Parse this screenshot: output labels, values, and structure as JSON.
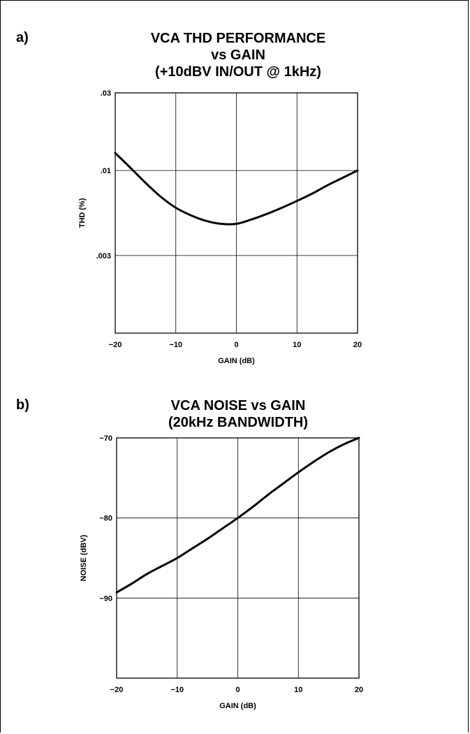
{
  "panels": {
    "a": {
      "letter": "a)",
      "title_lines": [
        "VCA THD PERFORMANCE",
        "vs GAIN",
        "(+10dBV IN/OUT @ 1kHz)"
      ]
    },
    "b": {
      "letter": "b)",
      "title_lines": [
        "VCA NOISE vs GAIN",
        "(20kHz BANDWIDTH)"
      ]
    }
  },
  "chart_data": [
    {
      "type": "line",
      "title": "VCA THD PERFORMANCE vs GAIN (+10dBV IN/OUT @ 1kHz)",
      "xlabel": "GAIN (dB)",
      "ylabel": "THD (%)",
      "xlim": [
        -20,
        20
      ],
      "ylim": [
        0.001,
        0.03
      ],
      "yscale": "log",
      "grid": true,
      "x_ticks": [
        -20,
        -10,
        0,
        10,
        20
      ],
      "x_tick_labels": [
        "−20",
        "−10",
        "0",
        "10",
        "20"
      ],
      "y_ticks": [
        0.003,
        0.01,
        0.03
      ],
      "y_tick_labels": [
        ".003",
        ".01",
        ".03"
      ],
      "series": [
        {
          "x": [
            -20,
            -17.5,
            -15,
            -12.5,
            -10,
            -7.5,
            -5,
            -2.5,
            0,
            2.5,
            5,
            7.5,
            10,
            12.5,
            15,
            17.5,
            20
          ],
          "y": [
            0.0128,
            0.0104,
            0.0084,
            0.0069,
            0.0059,
            0.0053,
            0.0049,
            0.0047,
            0.0047,
            0.005,
            0.0054,
            0.0059,
            0.0065,
            0.0072,
            0.0081,
            0.009,
            0.01
          ]
        }
      ]
    },
    {
      "type": "line",
      "title": "VCA NOISE vs GAIN (20kHz BANDWIDTH)",
      "xlabel": "GAIN (dB)",
      "ylabel": "NOISE (dBV)",
      "xlim": [
        -20,
        20
      ],
      "ylim": [
        -100,
        -70
      ],
      "grid": true,
      "x_ticks": [
        -20,
        -10,
        0,
        10,
        20
      ],
      "x_tick_labels": [
        "−20",
        "−10",
        "0",
        "10",
        "20"
      ],
      "y_ticks": [
        -90,
        -80,
        -70
      ],
      "y_tick_labels": [
        "−90",
        "−80",
        "−70"
      ],
      "series": [
        {
          "x": [
            -20,
            -17.5,
            -15,
            -12.5,
            -10,
            -7.5,
            -5,
            -2.5,
            0,
            2.5,
            5,
            7.5,
            10,
            12.5,
            15,
            17.5,
            20
          ],
          "y": [
            -89.3,
            -88.2,
            -87.0,
            -86.0,
            -85.0,
            -83.8,
            -82.6,
            -81.3,
            -80.0,
            -78.6,
            -77.1,
            -75.7,
            -74.3,
            -73.0,
            -71.8,
            -70.8,
            -70.0
          ]
        }
      ]
    }
  ]
}
